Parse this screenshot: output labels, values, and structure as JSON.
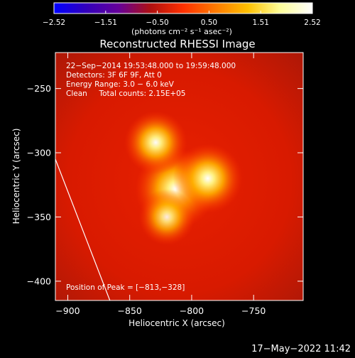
{
  "chart_data": {
    "type": "heatmap",
    "title": "Reconstructed RHESSI Image",
    "xlabel": "Heliocentric X (arcsec)",
    "ylabel": "Heliocentric Y (arcsec)",
    "xlim": [
      -910,
      -710
    ],
    "ylim": [
      -415,
      -222
    ],
    "x_ticks": [
      {
        "value": -900,
        "label": "−900"
      },
      {
        "value": -850,
        "label": "−850"
      },
      {
        "value": -800,
        "label": "−800"
      },
      {
        "value": -750,
        "label": "−750"
      }
    ],
    "y_ticks": [
      {
        "value": -250,
        "label": "−250"
      },
      {
        "value": -300,
        "label": "−300"
      },
      {
        "value": -350,
        "label": "−350"
      },
      {
        "value": -400,
        "label": "−400"
      }
    ],
    "colorbar": {
      "min": -2.52,
      "max": 2.52,
      "tick_labels": [
        "−2.52",
        "−1.51",
        "−0.50",
        "0.50",
        "1.51",
        "2.52"
      ],
      "unit_label": "(photons cm⁻² s⁻¹ asec⁻²)",
      "colors": [
        "#0000ff",
        "#3300bb",
        "#660099",
        "#b01010",
        "#ff3000",
        "#ff7a00",
        "#ffc000",
        "#ffff9a",
        "#ffffff"
      ]
    },
    "info_lines": [
      "22−Sep−2014 19:53:48.000 to 19:59:48.000",
      "Detectors: 3F 6F 9F, Att 0",
      "Energy Range: 3.0 − 6.0 keV",
      "Clean     Total counts: 2.15E+05"
    ],
    "peak_label": "Position of Peak = [−813,−328]",
    "sources": [
      {
        "x": -813,
        "y": -328,
        "intensity": 2.52
      },
      {
        "x": -787,
        "y": -320,
        "intensity": 2.0
      },
      {
        "x": -829,
        "y": -292,
        "intensity": 1.7
      },
      {
        "x": -820,
        "y": -350,
        "intensity": 1.4
      }
    ],
    "limb_line": [
      {
        "x": -910,
        "y": -305
      },
      {
        "x": -866,
        "y": -415
      }
    ]
  },
  "footer": {
    "timestamp": "17−May−2022 11:42"
  }
}
